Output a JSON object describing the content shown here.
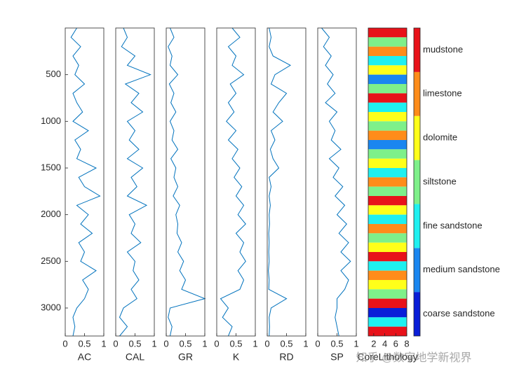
{
  "watermark": "知乎 @数字地学新视界",
  "chart_data": [
    {
      "type": "line",
      "xlabel": "AC",
      "color": "#0072bd",
      "xlim": [
        0,
        1
      ],
      "xticks": [
        0,
        0.5,
        1
      ],
      "ylim": [
        0,
        3300
      ],
      "yticks": [
        500,
        1000,
        1500,
        2000,
        2500,
        3000
      ],
      "y": [
        0,
        100,
        200,
        300,
        400,
        500,
        600,
        700,
        800,
        900,
        1000,
        1100,
        1200,
        1300,
        1400,
        1500,
        1600,
        1700,
        1800,
        1900,
        2000,
        2100,
        2200,
        2300,
        2400,
        2500,
        2600,
        2700,
        2800,
        2900,
        3000,
        3100,
        3200,
        3300
      ],
      "values": [
        0.3,
        0.15,
        0.4,
        0.2,
        0.35,
        0.25,
        0.5,
        0.2,
        0.3,
        0.45,
        0.2,
        0.6,
        0.25,
        0.4,
        0.3,
        0.8,
        0.35,
        0.5,
        0.9,
        0.3,
        0.6,
        0.4,
        0.7,
        0.35,
        0.5,
        0.4,
        0.8,
        0.45,
        0.6,
        0.5,
        0.3,
        0.2,
        0.25,
        0.2
      ]
    },
    {
      "type": "line",
      "xlabel": "CAL",
      "color": "#0072bd",
      "xlim": [
        0,
        1
      ],
      "xticks": [
        0,
        0.5,
        1
      ],
      "ylim": [
        0,
        3300
      ],
      "y": [
        0,
        100,
        200,
        300,
        400,
        500,
        600,
        700,
        800,
        900,
        1000,
        1100,
        1200,
        1300,
        1400,
        1500,
        1600,
        1700,
        1800,
        1900,
        2000,
        2100,
        2200,
        2300,
        2400,
        2500,
        2600,
        2700,
        2800,
        2900,
        3000,
        3100,
        3200,
        3300
      ],
      "values": [
        0.2,
        0.3,
        0.15,
        0.5,
        0.3,
        0.9,
        0.25,
        0.6,
        0.4,
        0.7,
        0.3,
        0.5,
        0.35,
        0.6,
        0.3,
        0.7,
        0.4,
        0.55,
        0.3,
        0.8,
        0.35,
        0.5,
        0.4,
        0.65,
        0.3,
        0.5,
        0.45,
        0.6,
        0.4,
        0.55,
        0.2,
        0.1,
        0.3,
        0.1
      ]
    },
    {
      "type": "line",
      "xlabel": "GR",
      "color": "#0072bd",
      "xlim": [
        0,
        1
      ],
      "xticks": [
        0,
        0.5,
        1
      ],
      "ylim": [
        0,
        3300
      ],
      "y": [
        0,
        100,
        200,
        300,
        400,
        500,
        600,
        700,
        800,
        900,
        1000,
        1100,
        1200,
        1300,
        1400,
        1500,
        1600,
        1700,
        1800,
        1900,
        2000,
        2100,
        2200,
        2300,
        2400,
        2500,
        2600,
        2700,
        2800,
        2900,
        3000,
        3100,
        3200,
        3300
      ],
      "values": [
        0.1,
        0.2,
        0.05,
        0.15,
        0.1,
        0.3,
        0.08,
        0.2,
        0.12,
        0.25,
        0.1,
        0.2,
        0.15,
        0.3,
        0.12,
        0.25,
        0.2,
        0.3,
        0.18,
        0.35,
        0.25,
        0.3,
        0.28,
        0.4,
        0.3,
        0.45,
        0.35,
        0.5,
        0.4,
        1,
        0.1,
        0.05,
        0.15,
        0.1
      ]
    },
    {
      "type": "line",
      "xlabel": "K",
      "color": "#0072bd",
      "xlim": [
        0,
        1
      ],
      "xticks": [
        0,
        0.5,
        1
      ],
      "ylim": [
        0,
        3300
      ],
      "y": [
        0,
        100,
        200,
        300,
        400,
        500,
        600,
        700,
        800,
        900,
        1000,
        1100,
        1200,
        1300,
        1400,
        1500,
        1600,
        1700,
        1800,
        1900,
        2000,
        2100,
        2200,
        2300,
        2400,
        2500,
        2600,
        2700,
        2800,
        2900,
        3000,
        3100,
        3200,
        3300
      ],
      "values": [
        0.4,
        0.6,
        0.3,
        0.5,
        0.4,
        0.7,
        0.35,
        0.5,
        0.3,
        0.45,
        0.25,
        0.5,
        0.3,
        0.55,
        0.4,
        0.6,
        0.45,
        0.65,
        0.5,
        0.7,
        0.55,
        0.75,
        0.5,
        0.7,
        0.6,
        0.75,
        0.55,
        0.7,
        0.6,
        0.1,
        0.3,
        0.15,
        0.4,
        0.3
      ]
    },
    {
      "type": "line",
      "xlabel": "RD",
      "color": "#0072bd",
      "xlim": [
        0,
        1
      ],
      "xticks": [
        0,
        0.5,
        1
      ],
      "ylim": [
        0,
        3300
      ],
      "y": [
        0,
        100,
        200,
        300,
        400,
        500,
        600,
        700,
        800,
        900,
        1000,
        1100,
        1200,
        1300,
        1400,
        1500,
        1600,
        1700,
        1800,
        1900,
        2000,
        2100,
        2200,
        2300,
        2400,
        2500,
        2600,
        2700,
        2800,
        2900,
        3000,
        3100,
        3200,
        3300
      ],
      "values": [
        0.05,
        0.1,
        0.05,
        0.15,
        0.6,
        0.2,
        0.1,
        0.5,
        0.3,
        0.15,
        0.4,
        0.1,
        0.2,
        0.08,
        0.15,
        0.3,
        0.05,
        0.1,
        0.05,
        0.08,
        0.05,
        0.06,
        0.04,
        0.05,
        0.04,
        0.05,
        0.03,
        0.05,
        0.04,
        0.5,
        0.1,
        0.05,
        0.06,
        0.05
      ]
    },
    {
      "type": "line",
      "xlabel": "SP",
      "color": "#0072bd",
      "xlim": [
        0,
        1
      ],
      "xticks": [
        0,
        0.5,
        1
      ],
      "ylim": [
        0,
        3300
      ],
      "y": [
        0,
        100,
        200,
        300,
        400,
        500,
        600,
        700,
        800,
        900,
        1000,
        1100,
        1200,
        1300,
        1400,
        1500,
        1600,
        1700,
        1800,
        1900,
        2000,
        2100,
        2200,
        2300,
        2400,
        2500,
        2600,
        2700,
        2800,
        2900,
        3000,
        3100,
        3200,
        3300
      ],
      "values": [
        0.1,
        0.3,
        0.15,
        0.35,
        0.2,
        0.4,
        0.25,
        0.45,
        0.2,
        0.5,
        0.3,
        0.45,
        0.35,
        0.6,
        0.3,
        0.55,
        0.4,
        0.65,
        0.45,
        0.7,
        0.5,
        0.75,
        0.55,
        0.8,
        0.6,
        0.85,
        0.6,
        0.8,
        0.7,
        0.5,
        0.5,
        0.45,
        0.5,
        0.55
      ]
    },
    {
      "type": "heatmap",
      "xlabel": "CoreLithology",
      "xlim": [
        1,
        8
      ],
      "xticks": [
        2,
        4,
        6,
        8
      ],
      "ylim": [
        0,
        3300
      ],
      "y": [
        0,
        100,
        200,
        300,
        400,
        500,
        600,
        700,
        800,
        900,
        1000,
        1100,
        1200,
        1300,
        1400,
        1500,
        1600,
        1700,
        1800,
        1900,
        2000,
        2100,
        2200,
        2300,
        2400,
        2500,
        2600,
        2700,
        2800,
        2900,
        3000,
        3100,
        3200,
        3300
      ],
      "values": [
        7,
        4,
        6,
        3,
        5,
        2,
        4,
        7,
        3,
        5,
        4,
        6,
        2,
        4,
        5,
        3,
        6,
        4,
        7,
        5,
        3,
        6,
        4,
        5,
        7,
        3,
        6,
        5,
        4,
        7,
        1,
        3,
        7
      ],
      "classes": [
        "coarse sandstone",
        "medium sandstone",
        "fine sandstone",
        "siltstone",
        "dolomite",
        "limestone",
        "mudstone"
      ],
      "colors": [
        "#0a1ed8",
        "#1a86f0",
        "#1ff0f0",
        "#7ef08a",
        "#ffff1a",
        "#ff8c1a",
        "#e8121a"
      ]
    }
  ]
}
